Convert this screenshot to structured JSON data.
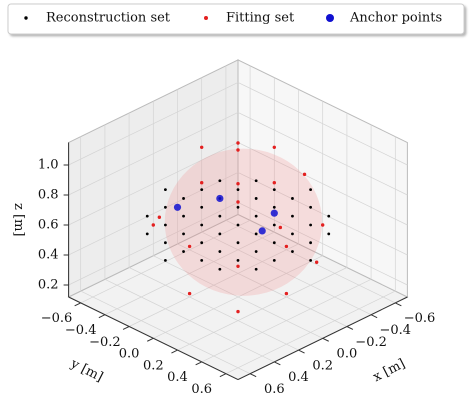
{
  "chart_data": {
    "type": "scatter3d",
    "xlabel": "x [m]",
    "ylabel": "y [m]",
    "zlabel": "z [m]",
    "xlim": [
      -0.7,
      0.7
    ],
    "ylim": [
      -0.7,
      0.7
    ],
    "zlim": [
      0.12,
      1.15
    ],
    "xticks": [
      {
        "value": -0.6,
        "label": "−0.6"
      },
      {
        "value": -0.4,
        "label": "−0.4"
      },
      {
        "value": -0.2,
        "label": "−0.2"
      },
      {
        "value": 0,
        "label": "0.0"
      },
      0.2,
      0.4,
      0.6
    ],
    "yticks": [
      {
        "value": -0.6,
        "label": "−0.6"
      },
      {
        "value": -0.4,
        "label": "−0.4"
      },
      {
        "value": -0.2,
        "label": "−0.2"
      },
      {
        "value": 0,
        "label": "0.0"
      },
      0.2,
      0.4,
      0.6
    ],
    "zticks": [
      0.2,
      0.4,
      0.6,
      0.8,
      {
        "value": 1,
        "label": "1.0"
      }
    ],
    "grid": true,
    "legend": "upper center",
    "series": [
      {
        "name": "Reconstruction set",
        "color": "#000000",
        "x": [
          -0.6,
          -0.45,
          -0.45,
          -0.45,
          -0.45,
          -0.45,
          -0.3,
          -0.3,
          -0.3,
          -0.3,
          -0.3,
          -0.3,
          -0.3,
          -0.15,
          -0.15,
          -0.15,
          -0.15,
          -0.15,
          -0.15,
          -0.15,
          0,
          0,
          0,
          0,
          0,
          0,
          0,
          0,
          0,
          0.15,
          0.15,
          0.15,
          0.15,
          0.15,
          0.15,
          0.15,
          0.3,
          0.3,
          0.3,
          0.3,
          0.3,
          0.3,
          0.3,
          0.45,
          0.45,
          0.45,
          0.45,
          0.45,
          0.6
        ],
        "y": [
          0,
          -0.3,
          -0.15,
          0,
          0.15,
          0.3,
          -0.45,
          -0.3,
          -0.15,
          0,
          0.15,
          0.3,
          0.45,
          -0.45,
          -0.3,
          -0.15,
          0,
          0.15,
          0.3,
          0.45,
          -0.6,
          -0.45,
          -0.3,
          -0.15,
          0,
          0.15,
          0.3,
          0.45,
          0.6,
          -0.45,
          -0.3,
          -0.15,
          0,
          0.15,
          0.3,
          0.45,
          -0.45,
          -0.3,
          -0.15,
          0,
          0.15,
          0.3,
          0.45,
          -0.3,
          -0.15,
          0,
          0.15,
          0.3,
          0
        ],
        "z": [
          0.6,
          0.6,
          0.6,
          0.6,
          0.6,
          0.6,
          0.6,
          0.6,
          0.6,
          0.6,
          0.6,
          0.6,
          0.6,
          0.6,
          0.6,
          0.6,
          0.6,
          0.6,
          0.6,
          0.6,
          0.6,
          0.6,
          0.6,
          0.6,
          0.6,
          0.6,
          0.6,
          0.6,
          0.6,
          0.6,
          0.6,
          0.6,
          0.6,
          0.6,
          0.6,
          0.6,
          0.6,
          0.6,
          0.6,
          0.6,
          0.6,
          0.6,
          0.6,
          0.6,
          0.6,
          0.6,
          0.6,
          0.6,
          0.6
        ]
      },
      {
        "name": "Fitting set",
        "color": "#e32020",
        "x": [
          0,
          0.3,
          -0.3,
          0,
          0,
          0.35,
          -0.35,
          0.35,
          -0.35,
          0.4,
          0,
          -0.4,
          0,
          0.2,
          0.25,
          -0.25,
          0.45,
          -0.2,
          0.1,
          -0.45
        ],
        "y": [
          0,
          0,
          0,
          0.3,
          -0.3,
          0.35,
          -0.35,
          -0.35,
          0.35,
          0,
          0.4,
          0,
          -0.4,
          0.2,
          0.25,
          -0.25,
          -0.2,
          0.45,
          0.45,
          0.1
        ],
        "z": [
          1.1,
          1.0,
          1.0,
          1.0,
          1.0,
          0.6,
          0.6,
          0.6,
          0.6,
          0.3,
          0.3,
          0.3,
          0.3,
          0.18,
          0.95,
          0.95,
          0.75,
          0.45,
          0.8,
          0.8
        ]
      },
      {
        "name": "Anchor points",
        "color": "#1010d0",
        "x": [
          0.1,
          -0.15,
          -0.25,
          -0.05
        ],
        "y": [
          -0.4,
          -0.3,
          0.05,
          0.15
        ],
        "z": [
          0.6,
          0.6,
          0.6,
          0.6
        ]
      }
    ]
  }
}
